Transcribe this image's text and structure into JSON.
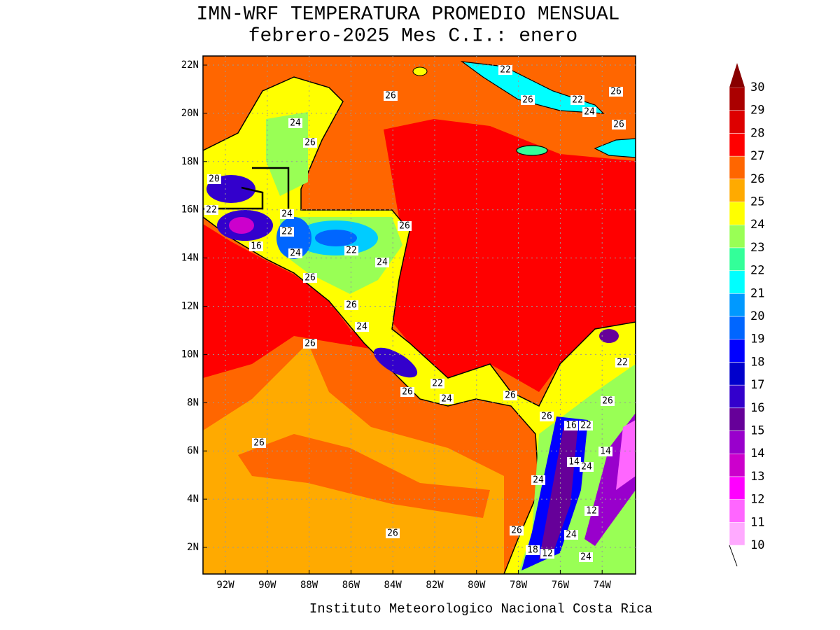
{
  "chart_data": {
    "type": "map",
    "title": "IMN-WRF  TEMPERATURA PROMEDIO MENSUAL",
    "subtitle": "febrero-2025 Mes C.I.: enero",
    "footer": "Instituto Meteorologico Nacional Costa Rica",
    "yticks": [
      {
        "value": 22,
        "label": "22N"
      },
      {
        "value": 20,
        "label": "20N"
      },
      {
        "value": 18,
        "label": "18N"
      },
      {
        "value": 16,
        "label": "16N"
      },
      {
        "value": 14,
        "label": "14N"
      },
      {
        "value": 12,
        "label": "12N"
      },
      {
        "value": 10,
        "label": "10N"
      },
      {
        "value": 8,
        "label": "8N"
      },
      {
        "value": 6,
        "label": "6N"
      },
      {
        "value": 4,
        "label": "4N"
      },
      {
        "value": 2,
        "label": "2N"
      }
    ],
    "xticks": [
      {
        "value": -92,
        "label": "92W"
      },
      {
        "value": -90,
        "label": "90W"
      },
      {
        "value": -88,
        "label": "88W"
      },
      {
        "value": -86,
        "label": "86W"
      },
      {
        "value": -84,
        "label": "84W"
      },
      {
        "value": -82,
        "label": "82W"
      },
      {
        "value": -80,
        "label": "80W"
      },
      {
        "value": -78,
        "label": "78W"
      },
      {
        "value": -76,
        "label": "76W"
      },
      {
        "value": -74,
        "label": "74W"
      }
    ],
    "grid": true,
    "colorbar": {
      "levels": [
        10,
        11,
        12,
        13,
        14,
        15,
        16,
        17,
        18,
        19,
        20,
        21,
        22,
        23,
        24,
        25,
        26,
        27,
        28,
        29,
        30
      ],
      "colors": [
        "#ffaaff",
        "#ff66ff",
        "#ff00ff",
        "#cc00cc",
        "#9900cc",
        "#660099",
        "#3300cc",
        "#0000cc",
        "#0000ff",
        "#0066ff",
        "#0099ff",
        "#00ffff",
        "#33ff99",
        "#99ff55",
        "#ffff00",
        "#ffaa00",
        "#ff6600",
        "#ff0000",
        "#dd0000",
        "#aa0000"
      ],
      "over_color": "#880000"
    },
    "contour_labels": [
      22,
      26,
      26,
      26,
      22,
      24,
      26,
      24,
      26,
      20,
      22,
      24,
      26,
      22,
      16,
      22,
      24,
      24,
      26,
      26,
      24,
      26,
      22,
      26,
      22,
      24,
      26,
      26,
      26,
      16,
      22,
      26,
      14,
      14,
      24,
      24,
      12,
      26,
      26,
      24,
      18,
      12,
      24
    ]
  }
}
